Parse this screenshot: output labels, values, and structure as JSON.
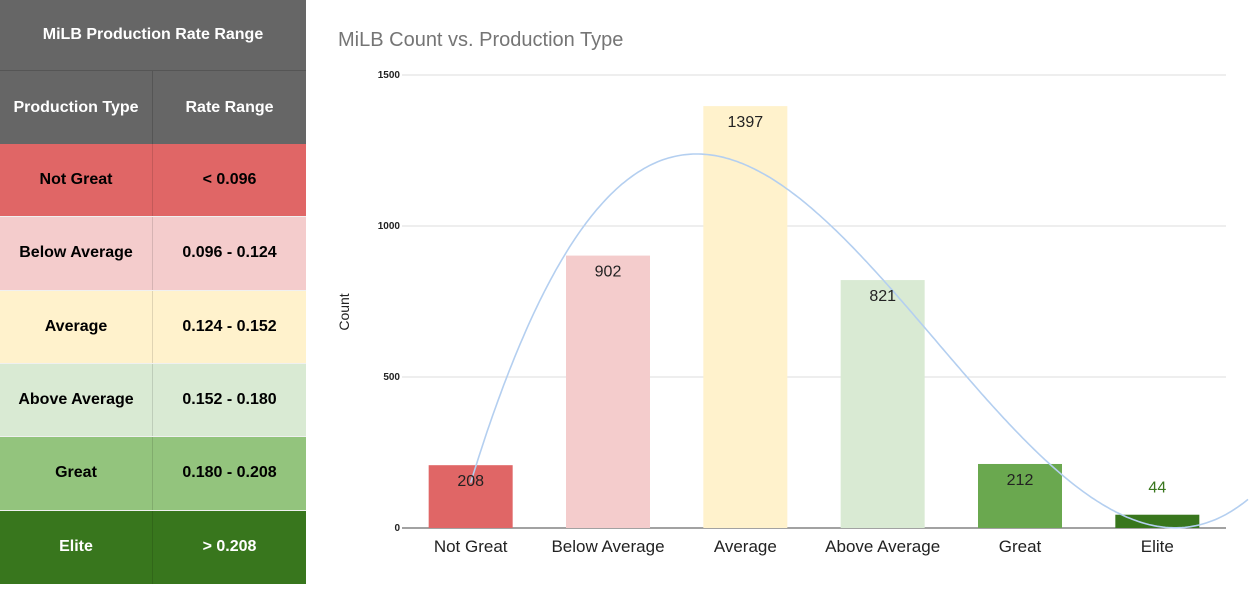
{
  "table": {
    "title": "MiLB Production Rate Range",
    "headers": [
      "Production Type",
      "Rate Range"
    ],
    "rows": [
      {
        "type": "Not Great",
        "range": "< 0.096",
        "color": "#e06666",
        "text_color": "#000000"
      },
      {
        "type": "Below Average",
        "range": "0.096 - 0.124",
        "color": "#f4cccc",
        "text_color": "#000000"
      },
      {
        "type": "Average",
        "range": "0.124 - 0.152",
        "color": "#fff2cc",
        "text_color": "#000000"
      },
      {
        "type": "Above Average",
        "range": "0.152 - 0.180",
        "color": "#d9ead3",
        "text_color": "#000000"
      },
      {
        "type": "Great",
        "range": "0.180 - 0.208",
        "color": "#93c47d",
        "text_color": "#000000"
      },
      {
        "type": "Elite",
        "range": "> 0.208",
        "color": "#38761d",
        "text_color": "#ffffff"
      }
    ]
  },
  "chart_data": {
    "type": "bar",
    "title": "MiLB Count vs. Production Type",
    "xlabel": "",
    "ylabel": "Count",
    "ylim": [
      0,
      1500
    ],
    "yticks": [
      0,
      500,
      1000,
      1500
    ],
    "categories": [
      "Not Great",
      "Below Average",
      "Average",
      "Above Average",
      "Great",
      "Elite"
    ],
    "values": [
      208,
      902,
      1397,
      821,
      212,
      44
    ],
    "bar_colors": [
      "#e06666",
      "#f4cccc",
      "#fff2cc",
      "#d9ead3",
      "#6aa84f",
      "#38761d"
    ],
    "label_colors": [
      "#222222",
      "#222222",
      "#222222",
      "#222222",
      "#222222",
      "#38761d"
    ],
    "trendline": {
      "type": "polynomial",
      "color": "#b4cff0"
    },
    "grid": true,
    "legend": "none"
  }
}
